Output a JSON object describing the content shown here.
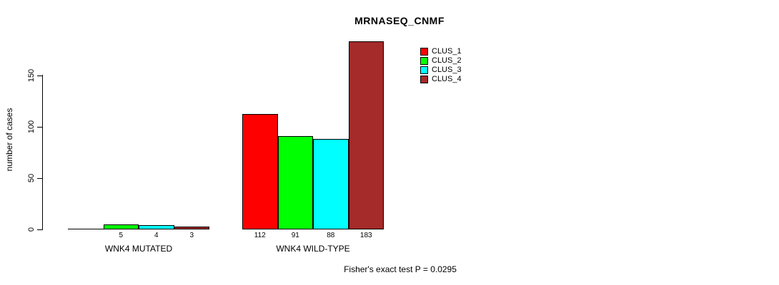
{
  "chart_data": {
    "type": "bar",
    "title": "MRNASEQ_CNMF",
    "ylabel": "number of cases",
    "xlabel": "",
    "ylim": [
      0,
      183
    ],
    "yticks": [
      0,
      50,
      100,
      150
    ],
    "grid": false,
    "series": [
      "CLUS_1",
      "CLUS_2",
      "CLUS_3",
      "CLUS_4"
    ],
    "colors": [
      "#FF0000",
      "#00FF00",
      "#00FFFF",
      "#A52A2A"
    ],
    "categories": [
      "WNK4 MUTATED",
      "WNK4 WILD-TYPE"
    ],
    "groups": [
      {
        "label": "WNK4 MUTATED",
        "values": [
          0,
          5,
          4,
          3
        ],
        "bar_labels": [
          "",
          "5",
          "4",
          "3"
        ]
      },
      {
        "label": "WNK4 WILD-TYPE",
        "values": [
          112,
          91,
          88,
          183
        ],
        "bar_labels": [
          "112",
          "91",
          "88",
          "183"
        ]
      }
    ],
    "legend": {
      "position": "top-right",
      "entries": [
        {
          "label": "CLUS_1",
          "color": "#FF0000"
        },
        {
          "label": "CLUS_2",
          "color": "#00FF00"
        },
        {
          "label": "CLUS_3",
          "color": "#00FFFF"
        },
        {
          "label": "CLUS_4",
          "color": "#A52A2A"
        }
      ]
    },
    "annotation": "Fisher's exact test P = 0.0295"
  }
}
